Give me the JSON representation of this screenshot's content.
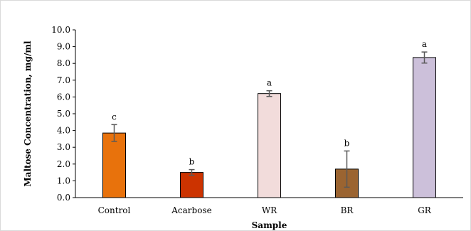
{
  "chart_data": {
    "type": "bar",
    "title": "",
    "xlabel": "Sample",
    "ylabel": "Maltose Concentration, mg/ml",
    "ylim": [
      0,
      10
    ],
    "yticks": [
      "0.0",
      "1.0",
      "2.0",
      "3.0",
      "4.0",
      "5.0",
      "6.0",
      "7.0",
      "8.0",
      "9.0",
      "10.0"
    ],
    "grid": false,
    "legend": "none",
    "categories": [
      "Control",
      "Acarbose",
      "WR",
      "BR",
      "GR"
    ],
    "values": [
      3.85,
      1.5,
      6.2,
      1.7,
      8.35
    ],
    "errors": [
      0.5,
      0.17,
      0.17,
      1.08,
      0.33
    ],
    "significance": [
      "c",
      "b",
      "a",
      "b",
      "a"
    ],
    "colors": [
      "#e8720c",
      "#cc3300",
      "#f2dcdb",
      "#9b6431",
      "#ccc0da"
    ]
  }
}
